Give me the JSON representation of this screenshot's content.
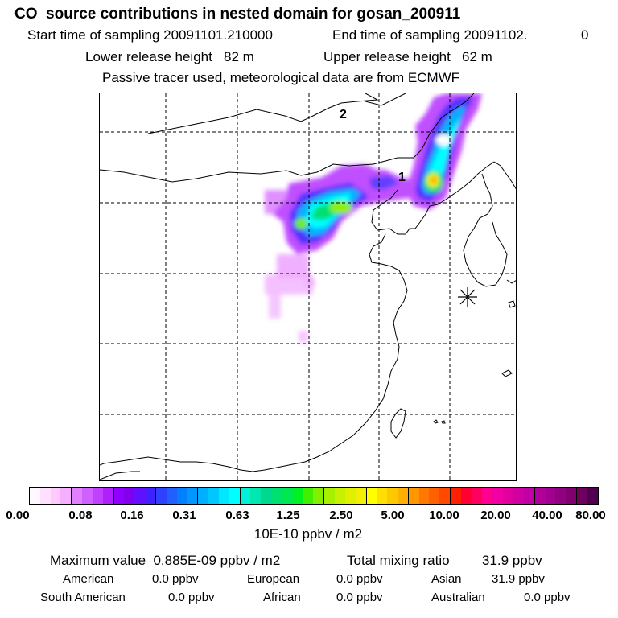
{
  "header": {
    "title": "CO  source contributions in nested domain for gosan_200911",
    "start_label": "Start time of sampling 20091101.210000",
    "end_label": "End time of sampling 20091102.",
    "end_trail": "0",
    "lower_label": "Lower release height   82 m",
    "upper_label": "Upper release height   62 m",
    "tracer_note": "Passive tracer used, meteorological data are from ECMWF"
  },
  "map": {
    "markers": [
      "2",
      "1"
    ],
    "station_symbol": "asterisk-star"
  },
  "colorbar": {
    "tick_labels": [
      "0.00",
      "0.08",
      "0.16",
      "0.31",
      "0.63",
      "1.25",
      "2.50",
      "5.00",
      "10.00",
      "20.00",
      "40.00",
      "80.00"
    ],
    "units": "10E-10 ppbv / m2",
    "colors": [
      "#fff8ff",
      "#ffe0ff",
      "#ffc8ff",
      "#f4b0ff",
      "#e080ff",
      "#d060ff",
      "#c040ff",
      "#b020ff",
      "#9000ff",
      "#8000ee",
      "#6010ff",
      "#4020ff",
      "#3040ff",
      "#2060ff",
      "#0080ff",
      "#0098ff",
      "#00b0ff",
      "#00c8ff",
      "#00e8ff",
      "#00ffff",
      "#00f0d8",
      "#00e8b0",
      "#00d890",
      "#00e070",
      "#00e850",
      "#00f020",
      "#40f000",
      "#80f000",
      "#a8f000",
      "#c8f000",
      "#e0f000",
      "#f0f000",
      "#ffff00",
      "#ffe000",
      "#ffc800",
      "#ffb000",
      "#ff9800",
      "#ff7800",
      "#ff6000",
      "#ff4800",
      "#ff2000",
      "#ff0030",
      "#ff0060",
      "#ff0090",
      "#f000a0",
      "#e000a0",
      "#d000a0",
      "#c000a0",
      "#b00098",
      "#a00090",
      "#900080",
      "#800070",
      "#700060",
      "#500050"
    ]
  },
  "summary": {
    "max_label": "Maximum value  0.885E-09 ppbv / m2",
    "total_label": "Total mixing ratio",
    "total_value": "31.9 ppbv",
    "regions": [
      {
        "name": "American",
        "value": "0.0 ppbv"
      },
      {
        "name": "European",
        "value": "0.0 ppbv"
      },
      {
        "name": "Asian",
        "value": "31.9 ppbv"
      },
      {
        "name": "South American",
        "value": "0.0 ppbv"
      },
      {
        "name": "African",
        "value": "0.0 ppbv"
      },
      {
        "name": "Australian",
        "value": "0.0 ppbv"
      }
    ]
  }
}
